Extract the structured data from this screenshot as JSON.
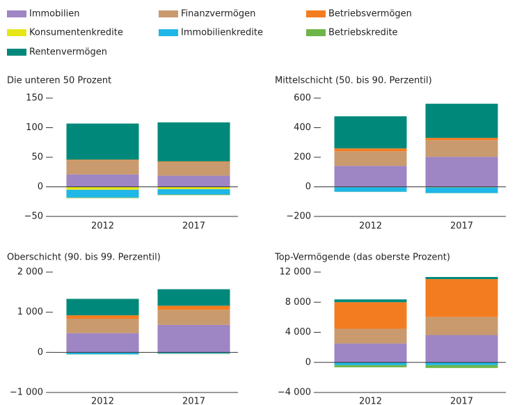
{
  "legend": [
    {
      "name": "Immobilien",
      "color": "#9e85c4"
    },
    {
      "name": "Finanzvermögen",
      "color": "#c99a6e"
    },
    {
      "name": "Betriebsvermögen",
      "color": "#f47c20"
    },
    {
      "name": "Konsumentenkredite",
      "color": "#e6e619"
    },
    {
      "name": "Immobilienkredite",
      "color": "#1fb6e8"
    },
    {
      "name": "Betriebskredite",
      "color": "#6db548"
    },
    {
      "name": "Rentenvermögen",
      "color": "#00897b"
    }
  ],
  "chart_data": [
    {
      "type": "bar",
      "title": "Die unteren 50 Prozent",
      "categories": [
        "2012",
        "2017"
      ],
      "series": [
        {
          "values": [
            21,
            19
          ]
        },
        {
          "values": [
            24,
            23
          ]
        },
        {
          "values": [
            1,
            1
          ]
        },
        {
          "values": [
            -5,
            -4
          ]
        },
        {
          "values": [
            -13,
            -9
          ]
        },
        {
          "values": [
            -1,
            -1
          ]
        },
        {
          "values": [
            61,
            66
          ]
        }
      ],
      "ylim": [
        -50,
        150
      ],
      "yticks": [
        {
          "value": -50,
          "label": "−50"
        },
        0,
        50,
        100,
        150
      ]
    },
    {
      "type": "bar",
      "title": "Mittelschicht (50. bis 90. Perzentil)",
      "categories": [
        "2012",
        "2017"
      ],
      "series": [
        {
          "values": [
            142,
            203
          ]
        },
        {
          "values": [
            99,
            113
          ]
        },
        {
          "values": [
            19,
            15
          ]
        },
        {
          "values": [
            -3,
            -4
          ]
        },
        {
          "values": [
            -30,
            -38
          ]
        },
        {
          "values": [
            -1,
            -1
          ]
        },
        {
          "values": [
            217,
            231
          ]
        }
      ],
      "ylim": [
        -200,
        600
      ],
      "yticks": [
        {
          "value": -200,
          "label": "−200"
        },
        0,
        200,
        400,
        600
      ]
    },
    {
      "type": "bar",
      "title": "Oberschicht (90. bis 99. Perzentil)",
      "categories": [
        "2012",
        "2017"
      ],
      "series": [
        {
          "values": [
            479,
            684
          ]
        },
        {
          "values": [
            359,
            376
          ]
        },
        {
          "values": [
            85,
            102
          ]
        },
        {
          "values": [
            -5,
            -3
          ]
        },
        {
          "values": [
            -45,
            -25
          ]
        },
        {
          "values": [
            -5,
            -10
          ]
        },
        {
          "values": [
            410,
            411
          ]
        }
      ],
      "ylim": [
        -1000,
        2000
      ],
      "yticks": [
        {
          "value": -1000,
          "label": "−1 000"
        },
        0,
        {
          "value": 1000,
          "label": "1 000"
        },
        {
          "value": 2000,
          "label": "2 000"
        }
      ]
    },
    {
      "type": "bar",
      "title": "Top-Vermögende (das oberste Prozent)",
      "categories": [
        "2012",
        "2017"
      ],
      "series": [
        {
          "values": [
            2512,
            3628
          ]
        },
        {
          "values": [
            1953,
            2419
          ]
        },
        {
          "values": [
            3535,
            5023
          ]
        },
        {
          "values": [
            -20,
            -20
          ]
        },
        {
          "values": [
            -350,
            -350
          ]
        },
        {
          "values": [
            -280,
            -370
          ]
        },
        {
          "values": [
            372,
            279
          ]
        }
      ],
      "ylim": [
        -4000,
        12000
      ],
      "yticks": [
        {
          "value": -4000,
          "label": "−4 000"
        },
        0,
        {
          "value": 4000,
          "label": "4 000"
        },
        {
          "value": 8000,
          "label": "8 000"
        },
        {
          "value": 12000,
          "label": "12 000"
        }
      ]
    }
  ]
}
